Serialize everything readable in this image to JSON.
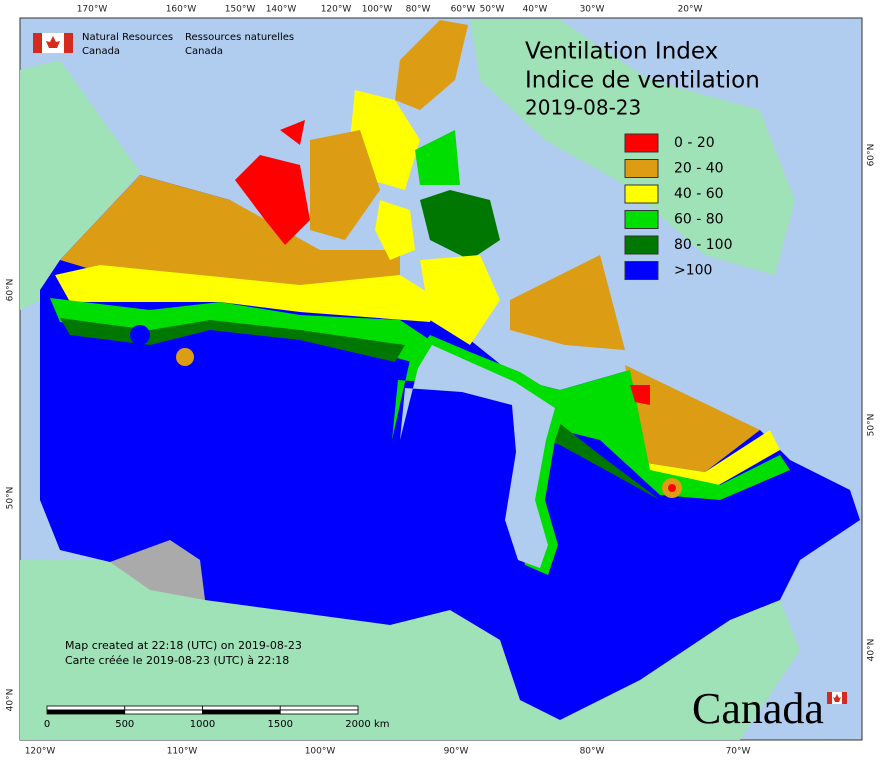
{
  "header": {
    "agency_en": [
      "Natural Resources",
      "Canada"
    ],
    "agency_fr": [
      "Ressources naturelles",
      "Canada"
    ]
  },
  "title": [
    "Ventilation Index",
    "Indice de ventilation",
    "2019-08-23"
  ],
  "legend": [
    {
      "label": "0 - 20",
      "color": "#ff0000"
    },
    {
      "label": "20 - 40",
      "color": "#dc9c14"
    },
    {
      "label": "40 - 60",
      "color": "#ffff00"
    },
    {
      "label": "60 - 80",
      "color": "#00dd00"
    },
    {
      "label": "80 - 100",
      "color": "#007700"
    },
    {
      "label": ">100",
      "color": "#0000ff"
    }
  ],
  "graticule": {
    "top": [
      "170°W",
      "160°W",
      "150°W",
      "140°W",
      "120°W",
      "100°W",
      "80°W",
      "60°W",
      "50°W",
      "40°W",
      "30°W",
      "20°W"
    ],
    "bottom": [
      "120°W",
      "110°W",
      "100°W",
      "90°W",
      "80°W",
      "70°W"
    ],
    "left": [
      "60°N",
      "50°N",
      "40°N"
    ],
    "right": [
      "60°N",
      "50°N",
      "40°N"
    ]
  },
  "notes": [
    "Map created at 22:18 (UTC) on 2019-08-23",
    "Carte créée le 2019-08-23 (UTC) à 22:18"
  ],
  "scale_bar": {
    "ticks": [
      0,
      500,
      1000,
      1500,
      2000
    ],
    "unit": "km"
  },
  "wordmark": "Canada"
}
